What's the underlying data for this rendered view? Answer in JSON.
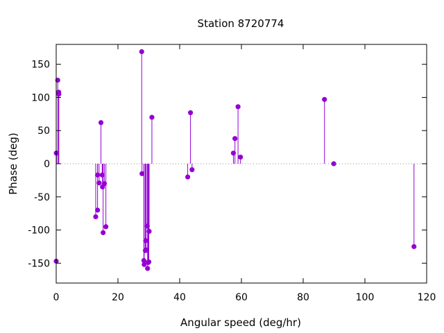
{
  "chart_data": {
    "type": "scatter",
    "style": "impulses-with-points",
    "title": "Station 8720774",
    "xlabel": "Angular speed (deg/hr)",
    "ylabel": "Phase (deg)",
    "xlim": [
      0,
      120
    ],
    "ylim": [
      -180,
      180
    ],
    "xticks": [
      0,
      20,
      40,
      60,
      80,
      100,
      120
    ],
    "yticks": [
      -150,
      -100,
      -50,
      0,
      50,
      100,
      150
    ],
    "zero_line": true,
    "grid": false,
    "legend": "none",
    "color": "#9400d3",
    "points": [
      {
        "x": 0.0,
        "y": -147
      },
      {
        "x": 0.04,
        "y": 16
      },
      {
        "x": 0.08,
        "y": 16
      },
      {
        "x": 0.5,
        "y": 126
      },
      {
        "x": 0.8,
        "y": 108
      },
      {
        "x": 0.85,
        "y": 105
      },
      {
        "x": 12.8,
        "y": -80
      },
      {
        "x": 13.4,
        "y": -70
      },
      {
        "x": 13.4,
        "y": -17
      },
      {
        "x": 13.9,
        "y": -29
      },
      {
        "x": 14.5,
        "y": 62
      },
      {
        "x": 14.9,
        "y": -17
      },
      {
        "x": 15.0,
        "y": -35
      },
      {
        "x": 15.2,
        "y": -104
      },
      {
        "x": 15.6,
        "y": -30
      },
      {
        "x": 16.1,
        "y": -95
      },
      {
        "x": 27.7,
        "y": 169
      },
      {
        "x": 27.8,
        "y": -15
      },
      {
        "x": 28.4,
        "y": -146
      },
      {
        "x": 28.5,
        "y": -152
      },
      {
        "x": 28.9,
        "y": -131
      },
      {
        "x": 29.0,
        "y": -116
      },
      {
        "x": 29.1,
        "y": -130
      },
      {
        "x": 29.5,
        "y": -94
      },
      {
        "x": 29.6,
        "y": -158
      },
      {
        "x": 29.8,
        "y": -149
      },
      {
        "x": 30.0,
        "y": -148
      },
      {
        "x": 30.1,
        "y": -102
      },
      {
        "x": 31.0,
        "y": 70
      },
      {
        "x": 42.6,
        "y": -20
      },
      {
        "x": 43.5,
        "y": 77
      },
      {
        "x": 44.0,
        "y": -9
      },
      {
        "x": 57.4,
        "y": 16
      },
      {
        "x": 57.9,
        "y": 38
      },
      {
        "x": 58.9,
        "y": 86
      },
      {
        "x": 59.7,
        "y": 10
      },
      {
        "x": 86.9,
        "y": 97
      },
      {
        "x": 89.9,
        "y": 0
      },
      {
        "x": 115.9,
        "y": -125
      }
    ]
  }
}
